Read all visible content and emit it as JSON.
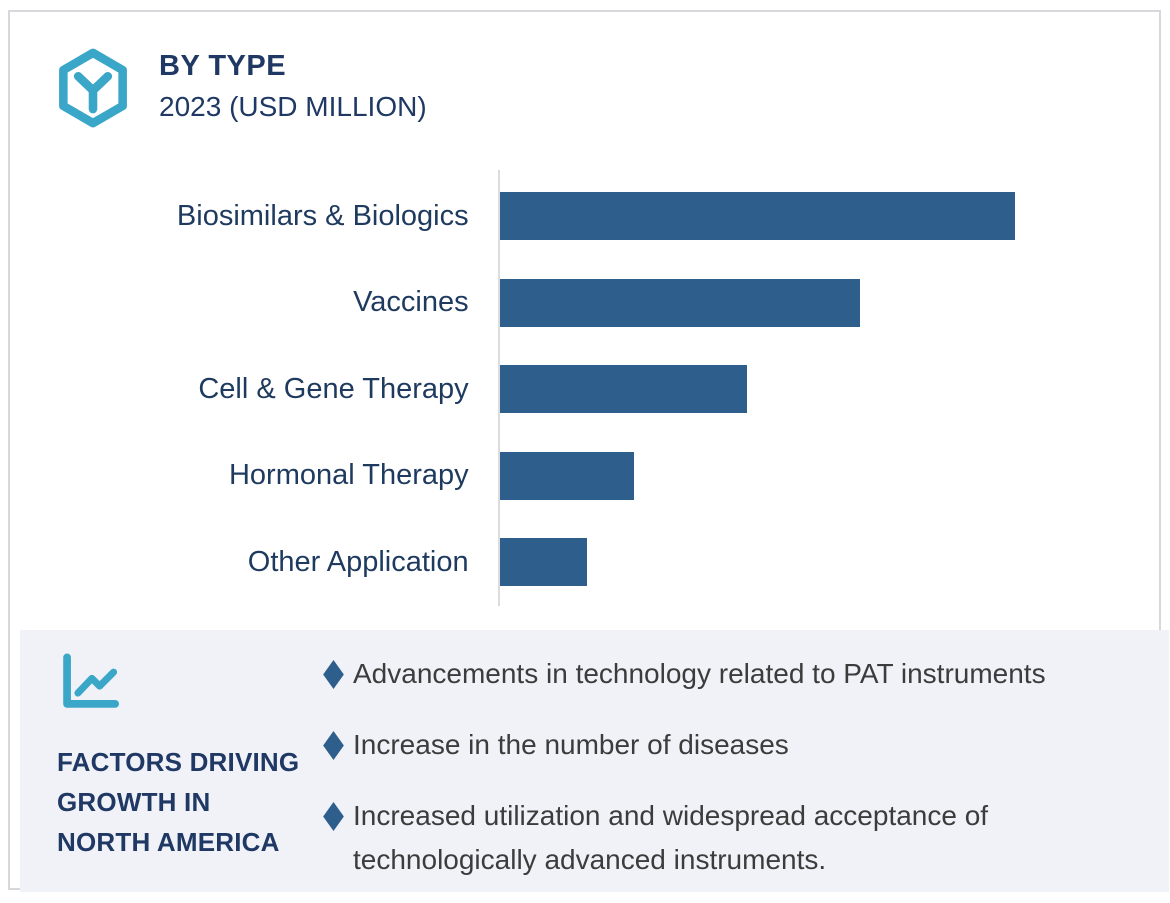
{
  "header": {
    "title": "BY TYPE",
    "subtitle": "2023 (USD MILLION)"
  },
  "chart_data": {
    "type": "bar",
    "orientation": "horizontal",
    "title": "BY TYPE",
    "subtitle": "2023 (USD MILLION)",
    "xlabel": "",
    "ylabel": "",
    "categories": [
      "Biosimilars & Biologics",
      "Vaccines",
      "Cell & Gene Therapy",
      "Hormonal Therapy",
      "Other Application"
    ],
    "values": [
      100,
      70,
      48,
      26,
      17
    ],
    "values_note": "relative bar lengths; no numeric axis, tick labels or data labels are shown in the figure",
    "xlim": [
      0,
      128
    ],
    "grid": false,
    "legend": false,
    "bar_color": "#2E5F8C",
    "axis_line_color": "#DCDCDC"
  },
  "factors_panel": {
    "heading_lines": [
      "FACTORS DRIVING",
      "GROWTH IN",
      "NORTH AMERICA"
    ],
    "bullets": [
      "Advancements in technology related to PAT instruments",
      "Increase in the number of diseases",
      "Increased utilization and widespread acceptance of technologically advanced instruments."
    ]
  },
  "icons": {
    "logo": "hexagon-molecule-icon",
    "panel": "line-chart-icon",
    "bullet": "diamond-icon"
  },
  "colors": {
    "accent_teal": "#3BA7C8",
    "heading_navy": "#1F3864",
    "category_label_navy": "#1E3A5F",
    "bar_blue": "#2E5F8C",
    "bullet_diamond_blue": "#2E5F8C",
    "body_text_gray": "#3C3C3C",
    "panel_background": "#F0F2F7",
    "card_border": "#D8D8DC"
  }
}
